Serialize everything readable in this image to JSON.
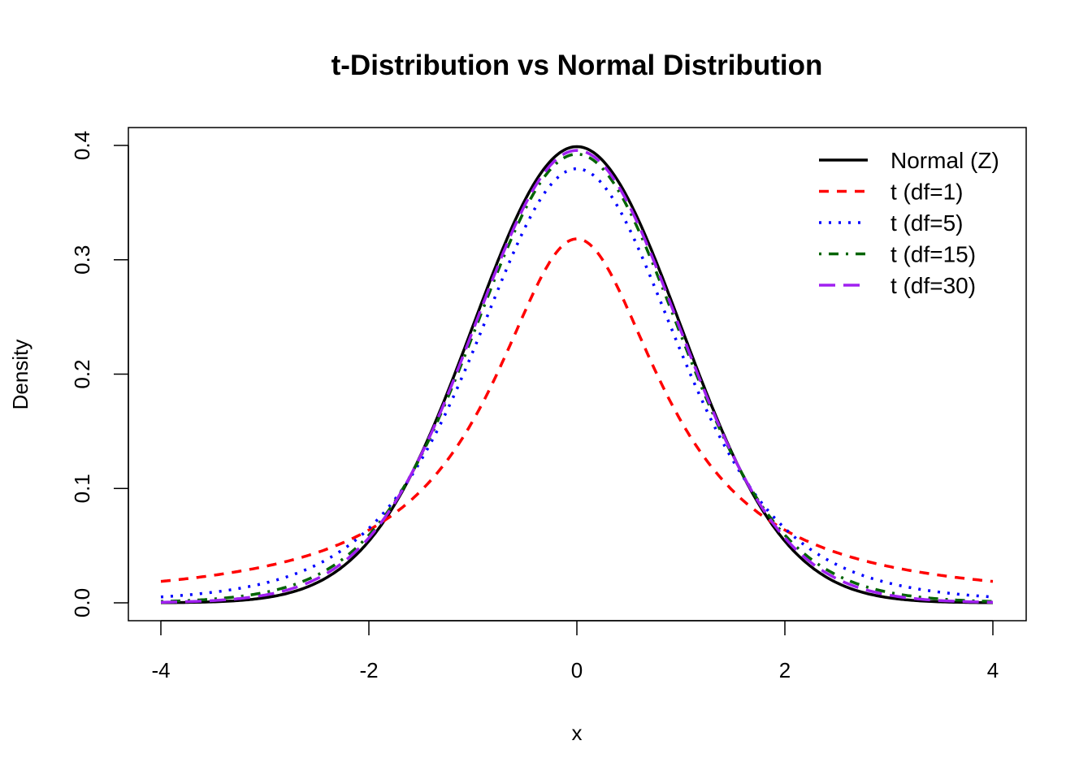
{
  "chart_data": {
    "type": "line",
    "title": "t-Distribution vs Normal Distribution",
    "xlabel": "x",
    "ylabel": "Density",
    "xlim": [
      -4,
      4
    ],
    "ylim": [
      0,
      0.4
    ],
    "xticks": [
      "-4",
      "-2",
      "0",
      "2",
      "4"
    ],
    "yticks": [
      "0.0",
      "0.1",
      "0.2",
      "0.3",
      "0.4"
    ],
    "grid": false,
    "legend_position": "top-right",
    "x": [
      -4,
      -3.5,
      -3,
      -2.5,
      -2,
      -1.5,
      -1,
      -0.5,
      0,
      0.5,
      1,
      1.5,
      2,
      2.5,
      3,
      3.5,
      4
    ],
    "series": [
      {
        "name": "Normal (Z)",
        "df": null,
        "color": "#000000",
        "dash": "solid",
        "values": [
          0.0001,
          0.0009,
          0.0044,
          0.0175,
          0.054,
          0.1295,
          0.242,
          0.3521,
          0.3989,
          0.3521,
          0.242,
          0.1295,
          0.054,
          0.0175,
          0.0044,
          0.0009,
          0.0001
        ]
      },
      {
        "name": "t (df=1)",
        "df": 1,
        "color": "#ff0000",
        "dash": "dashed",
        "values": [
          0.0187,
          0.024,
          0.0318,
          0.0439,
          0.0637,
          0.0979,
          0.1592,
          0.2546,
          0.3183,
          0.2546,
          0.1592,
          0.0979,
          0.0637,
          0.0439,
          0.0318,
          0.024,
          0.0187
        ]
      },
      {
        "name": "t (df=5)",
        "df": 5,
        "color": "#0000ff",
        "dash": "dotted",
        "values": [
          0.0051,
          0.0092,
          0.0173,
          0.0333,
          0.0651,
          0.1245,
          0.2197,
          0.3279,
          0.3796,
          0.3279,
          0.2197,
          0.1245,
          0.0651,
          0.0333,
          0.0173,
          0.0092,
          0.0051
        ]
      },
      {
        "name": "t (df=15)",
        "df": 15,
        "color": "#006400",
        "dash": "dotdash",
        "values": [
          0.0012,
          0.0033,
          0.0091,
          0.0242,
          0.0592,
          0.1283,
          0.2342,
          0.3439,
          0.3925,
          0.3439,
          0.2342,
          0.1283,
          0.0592,
          0.0242,
          0.0091,
          0.0033,
          0.0012
        ]
      },
      {
        "name": "t (df=30)",
        "df": 30,
        "color": "#a020f0",
        "dash": "longdash",
        "values": [
          0.0005,
          0.002,
          0.0068,
          0.0211,
          0.0568,
          0.129,
          0.238,
          0.3478,
          0.3956,
          0.3478,
          0.238,
          0.129,
          0.0568,
          0.0211,
          0.0068,
          0.002,
          0.0005
        ]
      }
    ]
  }
}
